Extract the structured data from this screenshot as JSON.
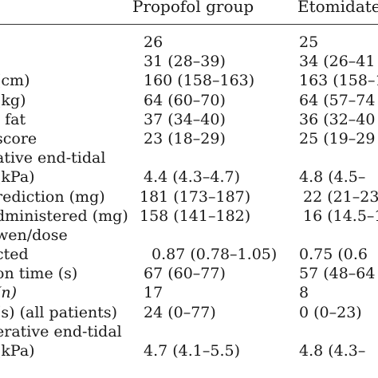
{
  "header": {
    "col1": "Propofol group",
    "col2": "Etomidate g"
  },
  "rows": [
    {
      "label": "",
      "v1": "26",
      "v2": "25"
    },
    {
      "label": ")",
      "v1": "31 (28–39)",
      "v2": "34 (26–41"
    },
    {
      "label": "(cm)",
      "v1": "160 (158–163)",
      "v2": "163 (158–1"
    },
    {
      "label": "(kg)",
      "v1": "64 (60–70)",
      "v2": "64 (57–74"
    },
    {
      "label": "· fat",
      "v1": "37 (34–40)",
      "v2": "36 (32–40"
    },
    {
      "label": " score",
      "v1": "23 (18–29)",
      "v2": "25 (19–29"
    },
    {
      "label": "ative end-tidal",
      "v1": "",
      "v2": ""
    },
    {
      "label": "(kPa)",
      "v1": "4.4 (4.3–4.7)",
      "v2": "4.8 (4.5–"
    },
    {
      "label": "rediction (mg)",
      "v1": "181 (173–187)",
      "v2": "22 (21–23"
    },
    {
      "label": "dministered (mg)",
      "v1": "158 (141–182)",
      "v2": "16 (14.5–1"
    },
    {
      "label": "wen/dose",
      "v1": "",
      "v2": ""
    },
    {
      "label": "cted",
      "v1": "0.87 (0.78–1.05)",
      "v2": "0.75 (0.6"
    },
    {
      "label": "on time (s)",
      "v1": "67 (60–77)",
      "v2": "57 (48–64"
    },
    {
      "label": "(n)",
      "v1": "17",
      "v2": "8"
    },
    {
      "label": "(s) (all patients)",
      "v1": "24 (0–77)",
      "v2": "0 (0–23)"
    },
    {
      "label": "erative end-tidal",
      "v1": "",
      "v2": ""
    },
    {
      "label": "(kPa)",
      "v1": "4.7 (4.1–5.5)",
      "v2": "4.8 (4.3–"
    }
  ]
}
